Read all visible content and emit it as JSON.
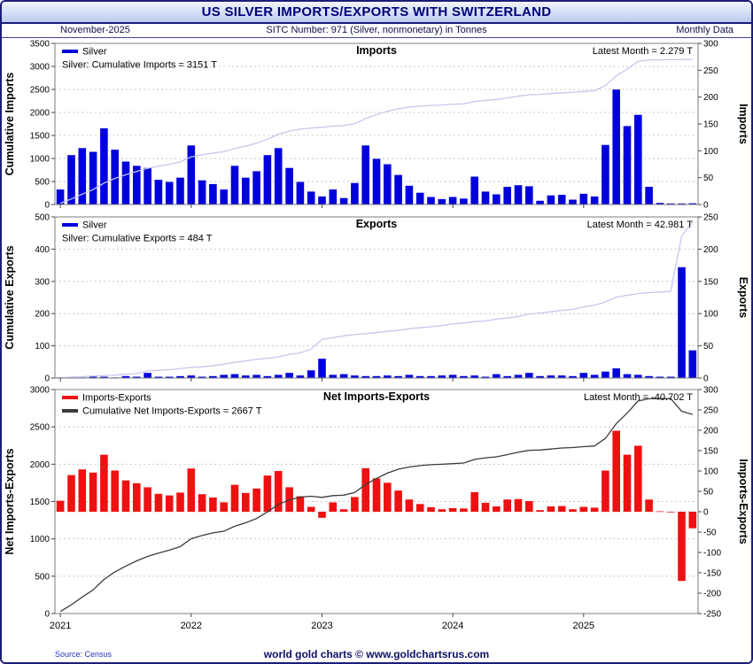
{
  "header": {
    "title": "US SILVER IMPORTS/EXPORTS WITH SWITZERLAND",
    "date": "November-2025",
    "sitc": "SITC Number: 971 (Silver, nonmonetary) in Tonnes",
    "period": "Monthly Data"
  },
  "footer": {
    "source": "Source: Census",
    "brand": "world gold charts © www.goldchartsrus.com"
  },
  "colors": {
    "bar_blue": "#0000dd",
    "bar_red": "#ee1111",
    "cumulative_light": "#c4c8ee",
    "cumulative_dark": "#3c3c3c",
    "title_navy": "#00007a"
  },
  "x_years": [
    2021,
    2022,
    2023,
    2024,
    2025
  ],
  "chart_data": [
    {
      "type": "bar",
      "name": "imports",
      "title": "Imports",
      "legend": [
        {
          "label": "Silver",
          "color": "#0000dd"
        }
      ],
      "annotation": "Silver: Cumulative Imports = 3151 T",
      "latest_label": "Latest Month = 2.279 T",
      "left_axis": {
        "label": "Cumulative Imports",
        "min": 0,
        "max": 3500,
        "ticks": [
          0,
          500,
          1000,
          1500,
          2000,
          2500,
          3000,
          3500
        ]
      },
      "right_axis": {
        "label": "Imports",
        "min": 0,
        "max": 300,
        "ticks": [
          0,
          50,
          100,
          150,
          200,
          250,
          300
        ]
      },
      "bar_color": "#0000dd",
      "line_color": "#c4c8ee",
      "x_start": "2021-01",
      "x_end": "2025-11",
      "monthly": [
        28,
        92,
        105,
        98,
        142,
        102,
        80,
        72,
        68,
        46,
        42,
        50,
        110,
        45,
        38,
        28,
        72,
        50,
        62,
        92,
        105,
        68,
        42,
        24,
        15,
        28,
        12,
        40,
        110,
        85,
        75,
        55,
        35,
        22,
        14,
        10,
        14,
        11,
        52,
        24,
        19,
        33,
        36,
        34,
        7,
        17,
        18,
        9,
        20,
        15,
        111,
        214,
        146,
        167,
        33,
        3,
        2,
        2,
        2.279
      ]
    },
    {
      "type": "bar",
      "name": "exports",
      "title": "Exports",
      "legend": [
        {
          "label": "Silver",
          "color": "#0000dd"
        }
      ],
      "annotation": "Silver: Cumulative Exports = 484 T",
      "latest_label": "Latest Month = 42.981 T",
      "left_axis": {
        "label": "Cumulative Exports",
        "min": 0,
        "max": 500,
        "ticks": [
          0,
          100,
          200,
          300,
          400,
          500
        ]
      },
      "right_axis": {
        "label": "Exports",
        "min": 0,
        "max": 250,
        "ticks": [
          0,
          50,
          100,
          150,
          200,
          250
        ]
      },
      "bar_color": "#0000dd",
      "line_color": "#c4c8ee",
      "x_start": "2021-01",
      "x_end": "2025-11",
      "monthly": [
        1,
        2,
        1,
        2,
        2,
        1,
        3,
        2,
        8,
        2,
        2,
        3,
        4,
        2,
        3,
        5,
        6,
        4,
        5,
        3,
        5,
        8,
        4,
        12,
        30,
        5,
        6,
        4,
        3,
        3,
        4,
        3,
        5,
        3,
        3,
        4,
        5,
        3,
        4,
        2,
        6,
        3,
        5,
        8,
        3,
        4,
        4,
        3,
        8,
        5,
        10,
        15,
        6,
        5,
        3,
        2,
        2,
        172,
        42.981
      ]
    },
    {
      "type": "bar",
      "name": "net",
      "title": "Net Imports-Exports",
      "legend": [
        {
          "label": "Imports-Exports",
          "color": "#ee1111"
        },
        {
          "label": "Cumulative Net Imports-Exports = 2667 T",
          "color": "#3c3c3c"
        }
      ],
      "annotation": null,
      "latest_label": "Latest Month = -40.702 T",
      "left_axis": {
        "label": "Net Imports-Exports",
        "min": 0,
        "max": 3000,
        "ticks": [
          0,
          500,
          1000,
          1500,
          2000,
          2500,
          3000
        ]
      },
      "right_axis": {
        "label": "Imports-Exports",
        "min": -250,
        "max": 300,
        "ticks": [
          -250,
          -200,
          -150,
          -100,
          -50,
          0,
          50,
          100,
          150,
          200,
          250,
          300
        ]
      },
      "bar_color": "#ee1111",
      "line_color": "#3c3c3c",
      "derive": "net",
      "x_start": "2021-01",
      "x_end": "2025-11",
      "monthly": []
    }
  ]
}
